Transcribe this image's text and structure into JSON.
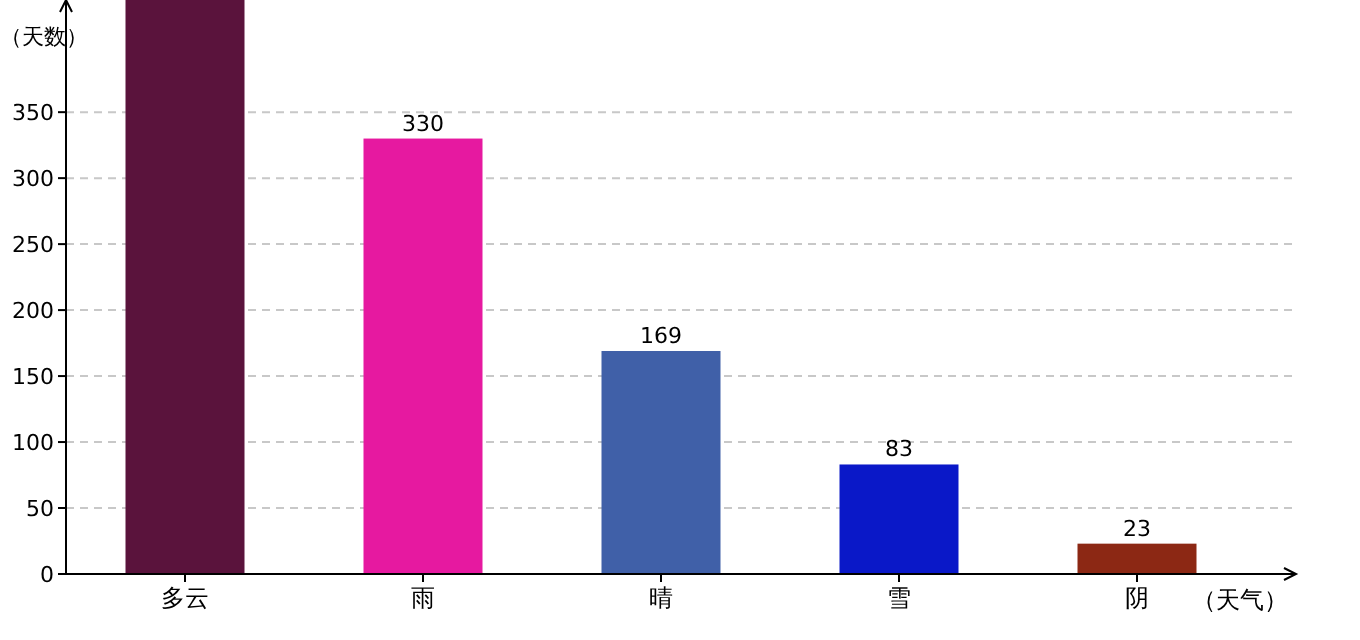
{
  "chart_data": {
    "type": "bar",
    "ylabel": "（天数）",
    "xlabel": "（天气）",
    "categories": [
      "多云",
      "雨",
      "晴",
      "雪",
      "阴"
    ],
    "values": [
      435,
      330,
      169,
      83,
      23
    ],
    "value_labels": [
      null,
      "330",
      "169",
      "83",
      "23"
    ],
    "colors": [
      "#5a133c",
      "#e619a0",
      "#4060a8",
      "#0a18c8",
      "#8c2814"
    ],
    "ylim": [
      0,
      435
    ],
    "yticks": [
      0,
      50,
      100,
      150,
      200,
      250,
      300,
      350
    ],
    "grid": "y"
  }
}
